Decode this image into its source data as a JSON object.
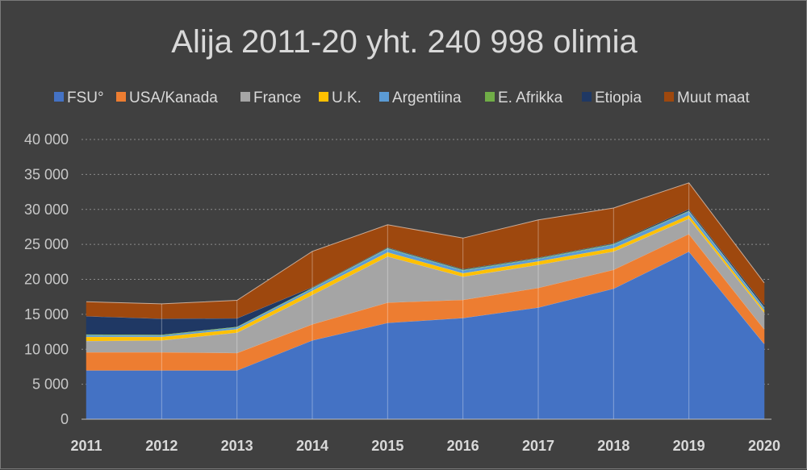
{
  "chart_data": {
    "type": "area",
    "stacked": true,
    "title": "Alija 2011-20 yht. 240 998 olimia",
    "xlabel": "",
    "ylabel": "",
    "ylim": [
      0,
      40000
    ],
    "yticks": [
      0,
      5000,
      10000,
      15000,
      20000,
      25000,
      30000,
      35000,
      40000
    ],
    "ytick_labels": [
      "0",
      "5 000",
      "10 000",
      "15 000",
      "20 000",
      "25 000",
      "30 000",
      "35 000",
      "40 000"
    ],
    "grid": true,
    "legend_position": "top",
    "categories": [
      "2011",
      "2012",
      "2013",
      "2014",
      "2015",
      "2016",
      "2017",
      "2018",
      "2019",
      "2020"
    ],
    "series": [
      {
        "name": "FSU°",
        "color": "#4472c4",
        "values": [
          7000,
          7000,
          7000,
          11300,
          13800,
          14500,
          16000,
          18700,
          24000,
          10800
        ]
      },
      {
        "name": "USA/Kanada",
        "color": "#ed7d31",
        "values": [
          2600,
          2600,
          2500,
          2300,
          2900,
          2600,
          2800,
          2700,
          2500,
          2100
        ]
      },
      {
        "name": "France",
        "color": "#a5a5a5",
        "values": [
          1600,
          1700,
          2900,
          4200,
          6600,
          3300,
          3300,
          2600,
          2200,
          2400
        ]
      },
      {
        "name": "U.K.",
        "color": "#ffc000",
        "values": [
          600,
          500,
          500,
          600,
          600,
          500,
          500,
          500,
          500,
          300
        ]
      },
      {
        "name": "Argentiina",
        "color": "#5b9bd5",
        "values": [
          250,
          200,
          250,
          300,
          500,
          400,
          350,
          500,
          550,
          350
        ]
      },
      {
        "name": "E. Afrikka",
        "color": "#70ad47",
        "values": [
          100,
          100,
          100,
          100,
          100,
          100,
          100,
          100,
          100,
          100
        ]
      },
      {
        "name": "Etiopia",
        "color": "#1f3864",
        "values": [
          2600,
          2300,
          1200,
          100,
          100,
          100,
          100,
          100,
          200,
          300
        ]
      },
      {
        "name": "Muut maat",
        "color": "#9e480e",
        "values": [
          2050,
          2100,
          2550,
          5100,
          3200,
          4400,
          5350,
          5000,
          3750,
          3150
        ]
      }
    ]
  }
}
